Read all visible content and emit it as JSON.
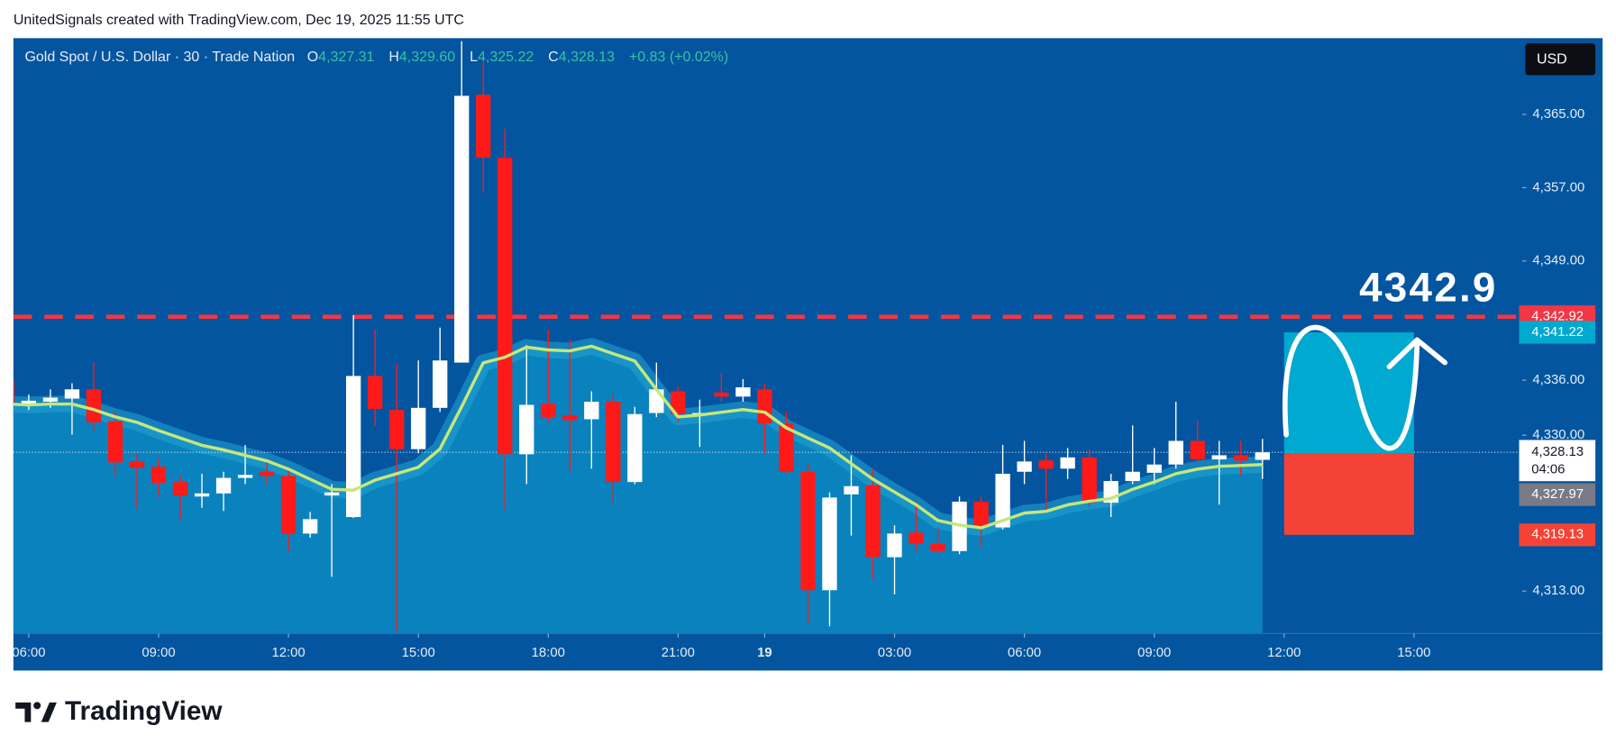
{
  "header": "UnitedSignals created with TradingView.com, Dec 19, 2025 11:55 UTC",
  "brand": "TradingView",
  "chart_data": {
    "type": "candlestick",
    "title": "Gold Spot / U.S. Dollar · 30 · Trade Nation",
    "ohlc_legend": [
      {
        "label": "O",
        "value": 4327.31,
        "value_label": "4,327.31"
      },
      {
        "label": "H",
        "value": 4329.6,
        "value_label": "4,329.60"
      },
      {
        "label": "L",
        "value": 4325.22,
        "value_label": "4,325.22"
      },
      {
        "label": "C",
        "value": 4328.13,
        "value_label": "4,328.13"
      }
    ],
    "change": {
      "value": 0.83,
      "label": "+0.83 (+0.02%)"
    },
    "currency": "USD",
    "up_color": "#ffffff",
    "down_color": "#ff1a1a",
    "open": [
      4335.9,
      4333.31,
      4333.65,
      4333.99,
      4335.0,
      4331.52,
      4327.13,
      4326.57,
      4324.89,
      4323.31,
      4323.65,
      4325.34,
      4326.01,
      4325.56,
      4319.27,
      4323.43,
      4321.07,
      4336.46,
      4332.75,
      4328.48,
      4332.98,
      4337.92,
      4367.13,
      4360.28,
      4327.92,
      4333.43,
      4332.19,
      4331.74,
      4333.65,
      4324.89,
      4332.42,
      4334.78,
      4332.19,
      4334.66,
      4334.21,
      4335.0,
      4331.29,
      4326.01,
      4313.09,
      4323.54,
      4324.55,
      4316.69,
      4319.38,
      4318.15,
      4317.36,
      4322.75,
      4319.94,
      4326.01,
      4327.25,
      4326.35,
      4327.58,
      4322.64,
      4325.0,
      4325.9,
      4326.8,
      4329.38,
      4327.36,
      4327.81,
      4327.31
    ],
    "high": [
      4336.46,
      4334.44,
      4335.0,
      4335.67,
      4337.92,
      4332.53,
      4328.03,
      4327.47,
      4325.56,
      4325.79,
      4326.01,
      4328.93,
      4327.13,
      4326.35,
      4321.63,
      4324.66,
      4343.09,
      4341.52,
      4337.81,
      4338.15,
      4341.74,
      4372.98,
      4370.73,
      4363.43,
      4339.83,
      4341.52,
      4340.39,
      4334.78,
      4334.55,
      4333.09,
      4337.92,
      4335.34,
      4333.88,
      4336.8,
      4336.12,
      4335.67,
      4332.53,
      4326.91,
      4323.76,
      4327.81,
      4326.35,
      4320.17,
      4322.75,
      4319.94,
      4323.31,
      4323.31,
      4328.93,
      4329.38,
      4328.03,
      4328.6,
      4328.48,
      4325.79,
      4331.07,
      4328.6,
      4333.65,
      4331.63,
      4329.38,
      4329.38,
      4329.6
    ],
    "low": [
      4333.09,
      4332.75,
      4332.98,
      4330.06,
      4330.51,
      4325.56,
      4321.97,
      4323.31,
      4320.73,
      4322.08,
      4321.74,
      4324.66,
      4324.66,
      4317.25,
      4318.82,
      4314.55,
      4320.96,
      4330.96,
      4308.6,
      4328.03,
      4332.53,
      4337.92,
      4356.46,
      4321.85,
      4324.66,
      4331.4,
      4326.01,
      4326.35,
      4322.64,
      4324.66,
      4331.97,
      4331.4,
      4328.71,
      4333.65,
      4333.65,
      4328.03,
      4325.79,
      4309.38,
      4309.16,
      4319.04,
      4314.33,
      4312.64,
      4317.36,
      4317.02,
      4317.02,
      4317.7,
      4319.72,
      4324.66,
      4321.63,
      4325.22,
      4322.19,
      4321.07,
      4324.66,
      4324.66,
      4326.35,
      4326.91,
      4322.42,
      4325.56,
      4325.22
    ],
    "close": [
      4333.31,
      4333.76,
      4334.1,
      4335.0,
      4331.4,
      4327.02,
      4326.46,
      4324.78,
      4323.43,
      4323.65,
      4325.34,
      4325.67,
      4325.56,
      4319.27,
      4320.84,
      4323.76,
      4336.46,
      4332.87,
      4328.48,
      4332.98,
      4338.15,
      4367.02,
      4360.28,
      4327.92,
      4333.31,
      4331.97,
      4331.63,
      4333.65,
      4324.89,
      4332.3,
      4335.0,
      4332.3,
      4332.42,
      4334.21,
      4335.22,
      4331.29,
      4326.01,
      4313.09,
      4323.2,
      4324.44,
      4316.69,
      4319.27,
      4318.15,
      4317.36,
      4322.75,
      4319.94,
      4325.79,
      4327.13,
      4326.35,
      4327.58,
      4322.64,
      4325.0,
      4326.01,
      4326.8,
      4329.38,
      4327.36,
      4327.81,
      4327.25,
      4328.13
    ],
    "ma": {
      "color": "#c6e77a",
      "values": [
        4333.4,
        4333.3,
        4333.4,
        4333.4,
        4332.8,
        4332.0,
        4331.4,
        4330.5,
        4329.7,
        4328.9,
        4328.4,
        4327.8,
        4327.2,
        4326.3,
        4325.2,
        4324.1,
        4324.0,
        4325.1,
        4325.8,
        4326.5,
        4328.5,
        4333.1,
        4337.9,
        4338.5,
        4339.6,
        4339.3,
        4339.2,
        4339.7,
        4338.9,
        4338.1,
        4335.0,
        4332.0,
        4332.2,
        4332.5,
        4332.8,
        4332.5,
        4330.8,
        4329.7,
        4328.6,
        4326.9,
        4325.2,
        4323.8,
        4322.4,
        4320.7,
        4320.2,
        4319.9,
        4320.7,
        4321.5,
        4321.7,
        4322.4,
        4322.8,
        4323.1,
        4324.1,
        4324.9,
        4325.8,
        4326.3,
        4326.6,
        4326.7,
        4326.8
      ]
    },
    "xlim": [
      0.29,
      70
    ],
    "xticks": [
      {
        "value": 1,
        "label": "06:00"
      },
      {
        "value": 7,
        "label": "09:00"
      },
      {
        "value": 13,
        "label": "12:00"
      },
      {
        "value": 19,
        "label": "15:00"
      },
      {
        "value": 25,
        "label": "18:00"
      },
      {
        "value": 31,
        "label": "21:00"
      },
      {
        "value": 35,
        "label": "19"
      },
      {
        "value": 41,
        "label": "03:00"
      },
      {
        "value": 47,
        "label": "06:00"
      },
      {
        "value": 53,
        "label": "09:00"
      },
      {
        "value": 59,
        "label": "12:00"
      },
      {
        "value": 65,
        "label": "15:00"
      }
    ],
    "ylim": [
      4308.37,
      4373.31
    ],
    "yticks": [
      {
        "value": 4365,
        "label": "4,365.00"
      },
      {
        "value": 4357,
        "label": "4,357.00"
      },
      {
        "value": 4349,
        "label": "4,349.00"
      },
      {
        "value": 4336,
        "label": "4,336.00"
      },
      {
        "value": 4330,
        "label": "4,330.00"
      },
      {
        "value": 4313,
        "label": "4,313.00"
      }
    ],
    "last_price": {
      "value": 4328.13,
      "label": "4,328.13",
      "countdown": "04:06"
    },
    "horizontal_line": {
      "value": 4342.92,
      "label": "4,342.92",
      "color": "#f23645"
    },
    "annotation": "4342.9",
    "position": {
      "start": 59,
      "end": 65,
      "target": {
        "value": 4341.22,
        "label": "4,341.22"
      },
      "entry": {
        "value": 4327.97,
        "label": "4,327.97"
      },
      "stop": {
        "value": 4319.13,
        "label": "4,319.13"
      }
    }
  }
}
